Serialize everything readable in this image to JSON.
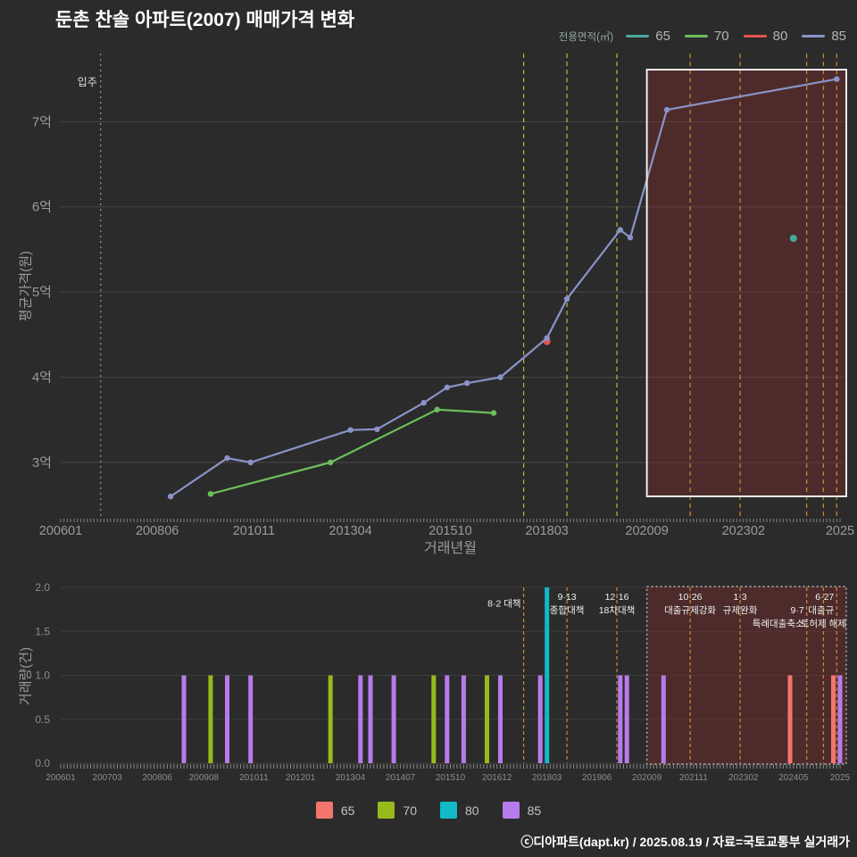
{
  "title": "둔촌 찬솔 아파트(2007) 매매가격 변화",
  "footer": "ⓒ디아파트(dapt.kr) / 2025.08.19 / 자료=국토교통부 실거래가",
  "top_legend": {
    "label": "전용면적(㎡)",
    "items": [
      {
        "label": "65",
        "color": "#45a99c"
      },
      {
        "label": "70",
        "color": "#6cbf5a"
      },
      {
        "label": "80",
        "color": "#e4544d"
      },
      {
        "label": "85",
        "color": "#8a93c8"
      }
    ]
  },
  "bottom_legend": {
    "items": [
      {
        "label": "65",
        "color": "#f4756b"
      },
      {
        "label": "70",
        "color": "#97ba1b"
      },
      {
        "label": "80",
        "color": "#12b9c6"
      },
      {
        "label": "85",
        "color": "#b77ceb"
      }
    ]
  },
  "colors": {
    "background": "#2b2b2b",
    "grid": "#474747",
    "axis_text": "#9b9b9b",
    "event_pre": "#b9bd32",
    "event_post": "#cd8a35",
    "highlight_fill": "rgba(150,42,42,0.32)",
    "highlight_border": "#ececec",
    "move_in_line": "#9a9a9a"
  },
  "chart_data": [
    {
      "type": "line",
      "title": "둔촌 찬솔 아파트(2007) 매매가격 변화",
      "xlabel": "거래년월",
      "ylabel": "평균가격(원)",
      "unit": "억원",
      "ylim": [
        2.35,
        7.8
      ],
      "x_domain": [
        "200601",
        "202507"
      ],
      "y_ticks": [
        {
          "v": 3,
          "label": "3억"
        },
        {
          "v": 4,
          "label": "4억"
        },
        {
          "v": 5,
          "label": "5억"
        },
        {
          "v": 6,
          "label": "6억"
        },
        {
          "v": 7,
          "label": "7억"
        }
      ],
      "x_ticks": [
        "200601",
        "200806",
        "201011",
        "201304",
        "201510",
        "201803",
        "202009",
        "202302",
        "2025"
      ],
      "move_in": {
        "month": "200701",
        "label": "입주"
      },
      "highlight": {
        "from": "202009",
        "to": "202507"
      },
      "series": [
        {
          "name": "65",
          "color": "#45a99c",
          "points": [
            {
              "m": "202405",
              "v": 5.63
            }
          ]
        },
        {
          "name": "70",
          "color": "#6cbf5a",
          "points": [
            {
              "m": "200910",
              "v": 2.63
            },
            {
              "m": "201210",
              "v": 3.0
            },
            {
              "m": "201506",
              "v": 3.62
            },
            {
              "m": "201611",
              "v": 3.58
            }
          ]
        },
        {
          "name": "80",
          "color": "#e4544d",
          "points": [
            {
              "m": "201803",
              "v": 4.42
            }
          ]
        },
        {
          "name": "85",
          "color": "#8a93c8",
          "points": [
            {
              "m": "200810",
              "v": 2.6
            },
            {
              "m": "201003",
              "v": 3.05
            },
            {
              "m": "201010",
              "v": 3.0
            },
            {
              "m": "201304",
              "v": 3.38
            },
            {
              "m": "201312",
              "v": 3.39
            },
            {
              "m": "201502",
              "v": 3.7
            },
            {
              "m": "201509",
              "v": 3.88
            },
            {
              "m": "201603",
              "v": 3.93
            },
            {
              "m": "201701",
              "v": 4.0
            },
            {
              "m": "201803",
              "v": 4.46
            },
            {
              "m": "201809",
              "v": 4.92
            },
            {
              "m": "202001",
              "v": 5.73
            },
            {
              "m": "202004",
              "v": 5.64
            },
            {
              "m": "202103",
              "v": 7.14
            },
            {
              "m": "202506",
              "v": 7.5
            }
          ]
        }
      ]
    },
    {
      "type": "bar",
      "ylabel": "거래량(건)",
      "ylim": [
        0,
        2
      ],
      "y_ticks": [
        {
          "v": 0,
          "label": "0.0"
        },
        {
          "v": 0.5,
          "label": "0.5"
        },
        {
          "v": 1,
          "label": "1.0"
        },
        {
          "v": 1.5,
          "label": "1.5"
        },
        {
          "v": 2,
          "label": "2.0"
        }
      ],
      "x_ticks": [
        "200601",
        "200703",
        "200806",
        "200908",
        "201011",
        "201201",
        "201304",
        "201407",
        "201510",
        "201612",
        "201803",
        "201906",
        "202009",
        "202111",
        "202302",
        "202405",
        "2025"
      ],
      "highlight": {
        "from": "202009",
        "to": "202507"
      },
      "bars": [
        {
          "m": "200902",
          "size": "85",
          "n": 1
        },
        {
          "m": "200910",
          "size": "70",
          "n": 1
        },
        {
          "m": "201003",
          "size": "85",
          "n": 1
        },
        {
          "m": "201010",
          "size": "85",
          "n": 1
        },
        {
          "m": "201210",
          "size": "70",
          "n": 1
        },
        {
          "m": "201307",
          "size": "85",
          "n": 1
        },
        {
          "m": "201310",
          "size": "85",
          "n": 1
        },
        {
          "m": "201405",
          "size": "85",
          "n": 1
        },
        {
          "m": "201505",
          "size": "70",
          "n": 1
        },
        {
          "m": "201509",
          "size": "85",
          "n": 1
        },
        {
          "m": "201602",
          "size": "85",
          "n": 1
        },
        {
          "m": "201609",
          "size": "70",
          "n": 1
        },
        {
          "m": "201701",
          "size": "85",
          "n": 1
        },
        {
          "m": "201801",
          "size": "85",
          "n": 1
        },
        {
          "m": "201803",
          "size": "80",
          "n": 2
        },
        {
          "m": "202001",
          "size": "85",
          "n": 1
        },
        {
          "m": "202003",
          "size": "85",
          "n": 1
        },
        {
          "m": "202102",
          "size": "85",
          "n": 1
        },
        {
          "m": "202404",
          "size": "65",
          "n": 1
        },
        {
          "m": "202505",
          "size": "65",
          "n": 1
        },
        {
          "m": "202507",
          "size": "85",
          "n": 1
        }
      ],
      "events": [
        {
          "m": "201708",
          "lines": [
            "8·2 대책"
          ],
          "row": 0.5,
          "anchor": "end"
        },
        {
          "m": "201809",
          "lines": [
            "9·13",
            "종합대책"
          ],
          "row": 0,
          "anchor": "middle"
        },
        {
          "m": "201912",
          "lines": [
            "12·16",
            "18차대책"
          ],
          "row": 0,
          "anchor": "middle"
        },
        {
          "m": "202110",
          "lines": [
            "10·26",
            "대출규제강화"
          ],
          "row": 0,
          "anchor": "middle"
        },
        {
          "m": "202301",
          "lines": [
            "1·3",
            "규제완화"
          ],
          "row": 0,
          "anchor": "middle"
        },
        {
          "m": "202409",
          "lines": [
            "9·7",
            "특례대출축소"
          ],
          "row": 1,
          "anchor": "end"
        },
        {
          "m": "202502",
          "lines": [
            "",
            "토허제 해제"
          ],
          "row": 1,
          "anchor": "middle"
        },
        {
          "m": "202506",
          "lines": [
            "6·27",
            "대출규"
          ],
          "row": 0,
          "anchor": "end"
        }
      ]
    }
  ]
}
